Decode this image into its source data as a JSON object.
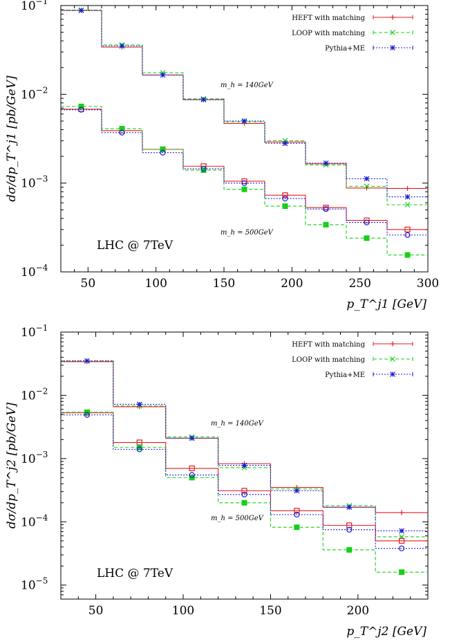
{
  "chart_data": [
    {
      "type": "line",
      "panel": "top",
      "ylabel": "dσ/dp_T^j1 [pb/GeV]",
      "xlabel": "p_T^j1 [GeV]",
      "xlim": [
        30,
        300
      ],
      "ylim": [
        0.0001,
        0.1
      ],
      "yscale": "log",
      "legend_position": "top-right",
      "bins": [
        [
          30,
          60
        ],
        [
          60,
          90
        ],
        [
          90,
          120
        ],
        [
          120,
          150
        ],
        [
          150,
          180
        ],
        [
          180,
          210
        ],
        [
          210,
          240
        ],
        [
          240,
          270
        ],
        [
          270,
          300
        ]
      ],
      "xcenters": [
        45,
        75,
        105,
        135,
        165,
        195,
        225,
        255,
        285
      ],
      "xticks": [
        "50",
        "100",
        "150",
        "200",
        "250",
        "300"
      ],
      "yticks": [
        "10^-4",
        "10^-3",
        "10^-2",
        "10^-1"
      ],
      "annotations": [
        "m_h = 140GeV",
        "m_h = 500GeV",
        "LHC @ 7TeV"
      ],
      "series": [
        {
          "name": "HEFT with matching",
          "mass": "140",
          "values": [
            0.088,
            0.034,
            0.0165,
            0.0087,
            0.0047,
            0.0029,
            0.00165,
            0.00088,
            0.00087
          ]
        },
        {
          "name": "LOOP with matching",
          "mass": "140",
          "values": [
            0.089,
            0.036,
            0.0175,
            0.0089,
            0.0049,
            0.003,
            0.0016,
            0.00092,
            0.00057
          ]
        },
        {
          "name": "Pythia+ME",
          "mass": "140",
          "values": [
            0.088,
            0.035,
            0.0165,
            0.0087,
            0.005,
            0.0028,
            0.00168,
            0.00112,
            0.0007
          ]
        },
        {
          "name": "HEFT with matching",
          "mass": "500",
          "values": [
            0.0068,
            0.0039,
            0.0024,
            0.00155,
            0.00105,
            0.00073,
            0.00053,
            0.00038,
            0.0003
          ]
        },
        {
          "name": "LOOP with matching",
          "mass": "500",
          "values": [
            0.0073,
            0.0041,
            0.0024,
            0.0014,
            0.00085,
            0.00055,
            0.00034,
            0.00024,
            0.000155
          ]
        },
        {
          "name": "Pythia+ME",
          "mass": "500",
          "values": [
            0.0067,
            0.0037,
            0.0022,
            0.00145,
            0.001,
            0.00067,
            0.00051,
            0.00036,
            0.00026
          ]
        }
      ]
    },
    {
      "type": "line",
      "panel": "bottom",
      "ylabel": "dσ/dp_T^j2 [pb/GeV]",
      "xlabel": "p_T^j2 [GeV]",
      "xlim": [
        30,
        240
      ],
      "ylim": [
        6e-06,
        0.1
      ],
      "yscale": "log",
      "legend_position": "top-right",
      "bins": [
        [
          30,
          60
        ],
        [
          60,
          90
        ],
        [
          90,
          120
        ],
        [
          120,
          150
        ],
        [
          150,
          180
        ],
        [
          180,
          210
        ],
        [
          210,
          240
        ]
      ],
      "xcenters": [
        45,
        75,
        105,
        135,
        165,
        195,
        225
      ],
      "xticks": [
        "50",
        "100",
        "150",
        "200"
      ],
      "yticks": [
        "10^-5",
        "10^-4",
        "10^-3",
        "10^-2",
        "10^-1"
      ],
      "annotations": [
        "m_h = 140GeV",
        "m_h = 500GeV",
        "LHC @ 7TeV"
      ],
      "series": [
        {
          "name": "HEFT with matching",
          "mass": "140",
          "values": [
            0.034,
            0.0066,
            0.0021,
            0.00083,
            0.00035,
            0.00017,
            0.00014
          ]
        },
        {
          "name": "LOOP with matching",
          "mass": "140",
          "values": [
            0.035,
            0.0068,
            0.0022,
            0.00072,
            0.00033,
            0.00018,
            5.8e-05
          ]
        },
        {
          "name": "Pythia+ME",
          "mass": "140",
          "values": [
            0.035,
            0.0072,
            0.0021,
            0.00078,
            0.00031,
            0.00017,
            7.2e-05
          ]
        },
        {
          "name": "HEFT with matching",
          "mass": "500",
          "values": [
            0.0053,
            0.0018,
            0.0007,
            0.00031,
            0.00015,
            8.8e-05,
            5e-05
          ]
        },
        {
          "name": "LOOP with matching",
          "mass": "500",
          "values": [
            0.0054,
            0.0015,
            0.0005,
            0.0002,
            8.2e-05,
            3.6e-05,
            1.6e-05
          ]
        },
        {
          "name": "Pythia+ME",
          "mass": "500",
          "values": [
            0.0049,
            0.0014,
            0.00055,
            0.00027,
            0.00013,
            7.5e-05,
            3.8e-05
          ]
        }
      ]
    }
  ],
  "style": {
    "HEFT with matching": {
      "color": "#e8191c",
      "dash": "",
      "marker_140": "plus",
      "marker_500": "square-open"
    },
    "LOOP with matching": {
      "color": "#18d018",
      "dash": "5,3",
      "marker_140": "cross",
      "marker_500": "square-filled"
    },
    "Pythia+ME": {
      "color": "#1c1cd8",
      "dash": "2,2",
      "marker_140": "star",
      "marker_500": "circle-open"
    }
  }
}
